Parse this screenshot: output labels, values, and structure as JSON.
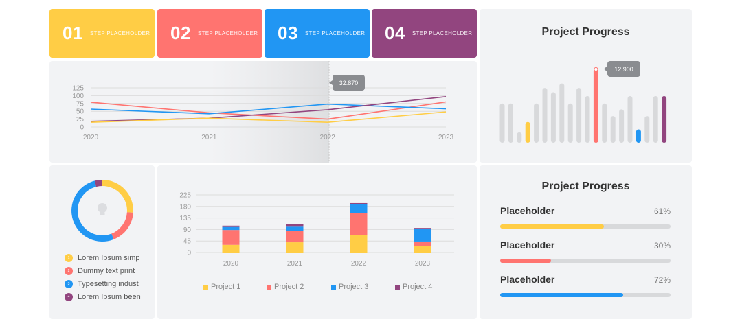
{
  "steps": [
    {
      "num": "01",
      "label": "STEP PLACEHOLDER",
      "color": "#ffcd45"
    },
    {
      "num": "02",
      "label": "STEP PLACEHOLDER",
      "color": "#ff7470"
    },
    {
      "num": "03",
      "label": "STEP PLACEHOLDER",
      "color": "#2196f3"
    },
    {
      "num": "04",
      "label": "STEP PLACEHOLDER",
      "color": "#92457f"
    }
  ],
  "colors": {
    "yellow": "#ffcd45",
    "red": "#ff7470",
    "blue": "#2196f3",
    "purple": "#92457f",
    "grey": "#d8d9db"
  },
  "line_chart": {
    "chart_data": {
      "type": "line",
      "x": [
        "2020",
        "2021",
        "2022",
        "2023"
      ],
      "yticks": [
        "125",
        "100",
        "75",
        "50",
        "25",
        "0"
      ],
      "ylim": [
        0,
        125
      ],
      "series": [
        {
          "name": "red",
          "values": [
            79,
            45,
            25,
            80
          ]
        },
        {
          "name": "blue",
          "values": [
            57,
            42,
            73,
            58
          ]
        },
        {
          "name": "purple",
          "values": [
            18,
            28,
            55,
            97
          ]
        },
        {
          "name": "yellow",
          "values": [
            15,
            28,
            15,
            48
          ]
        }
      ],
      "tooltip": "32.870",
      "highlight_category": "2022"
    }
  },
  "bar_progress": {
    "title": "Project Progress",
    "tooltip": "12.900",
    "chart_data": {
      "type": "bar",
      "ylim": [
        0,
        100
      ],
      "values": [
        53,
        53,
        14,
        28,
        53,
        74,
        68,
        80,
        53,
        74,
        63,
        100,
        53,
        36,
        45,
        63,
        18,
        36,
        63,
        63
      ],
      "highlight": {
        "3": "yellow",
        "11": "red",
        "16": "blue",
        "19": "purple"
      }
    }
  },
  "donut": {
    "chart_data": {
      "type": "pie",
      "segments": [
        {
          "name": "Lorem Ipsum simp",
          "value": 26,
          "color": "#ffcd45"
        },
        {
          "name": "Dummy text print",
          "value": 18,
          "color": "#ff7470"
        },
        {
          "name": "Typesetting indust",
          "value": 52,
          "color": "#2196f3"
        },
        {
          "name": "Lorem Ipsum been",
          "value": 4,
          "color": "#92457f"
        }
      ]
    },
    "legend": [
      {
        "index": "1",
        "label": "Lorem Ipsum simp",
        "color": "#ffcd45"
      },
      {
        "index": "2",
        "label": "Dummy text print",
        "color": "#ff7470"
      },
      {
        "index": "3",
        "label": "Typesetting indust",
        "color": "#2196f3"
      },
      {
        "index": "4",
        "label": "Lorem Ipsum been",
        "color": "#92457f"
      }
    ]
  },
  "stacked_chart": {
    "chart_data": {
      "type": "bar",
      "stacked": true,
      "categories": [
        "2020",
        "2021",
        "2022",
        "2023"
      ],
      "yticks": [
        "225",
        "180",
        "135",
        "90",
        "45",
        "0"
      ],
      "ylim": [
        0,
        225
      ],
      "series": [
        {
          "name": "Project 1",
          "values": [
            30,
            40,
            68,
            25
          ],
          "color": "#ffcd45"
        },
        {
          "name": "Project 2",
          "values": [
            58,
            45,
            85,
            18
          ],
          "color": "#ff7470"
        },
        {
          "name": "Project 3",
          "values": [
            12,
            16,
            35,
            50
          ],
          "color": "#2196f3"
        },
        {
          "name": "Project 4",
          "values": [
            5,
            10,
            5,
            3
          ],
          "color": "#92457f"
        }
      ]
    }
  },
  "progress": {
    "title": "Project Progress",
    "items": [
      {
        "name": "Placeholder",
        "percent": "61%",
        "value": 0.61,
        "color": "#ffcd45"
      },
      {
        "name": "Placeholder",
        "percent": "30%",
        "value": 0.3,
        "color": "#ff7470"
      },
      {
        "name": "Placeholder",
        "percent": "72%",
        "value": 0.72,
        "color": "#2196f3"
      }
    ]
  }
}
